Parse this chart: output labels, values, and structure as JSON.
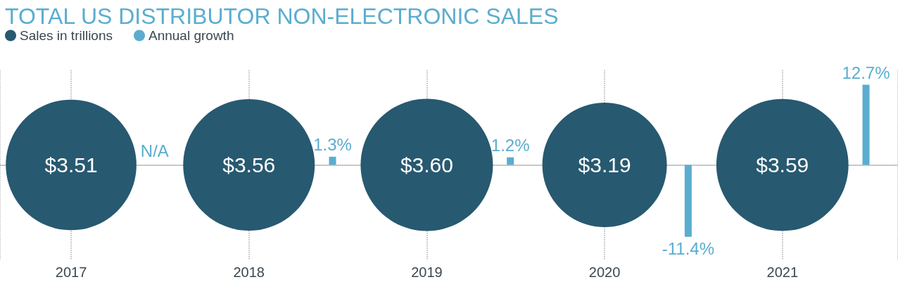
{
  "chart_data": {
    "type": "bubble",
    "title": "TOTAL US DISTRIBUTOR NON-ELECTRONIC SALES",
    "categories": [
      "2017",
      "2018",
      "2019",
      "2020",
      "2021"
    ],
    "series": [
      {
        "name": "Sales in trillions",
        "color": "#275970",
        "values": [
          0,
          0,
          0,
          0,
          0
        ],
        "sizes": [
          3.51,
          3.56,
          3.6,
          3.19,
          3.59
        ],
        "value_labels": [
          "$3.51",
          "$3.56",
          "$3.60",
          "$3.19",
          "$3.59"
        ]
      },
      {
        "name": "Annual growth",
        "type": "bar",
        "color": "#5aadcf",
        "values": [
          null,
          1.3,
          1.2,
          -11.4,
          12.7
        ],
        "value_labels": [
          "N/A",
          "1.3%",
          "1.2%",
          "-11.4%",
          "12.7%"
        ]
      }
    ],
    "legend": "top left",
    "grid": "x",
    "tick_labels": "x"
  }
}
